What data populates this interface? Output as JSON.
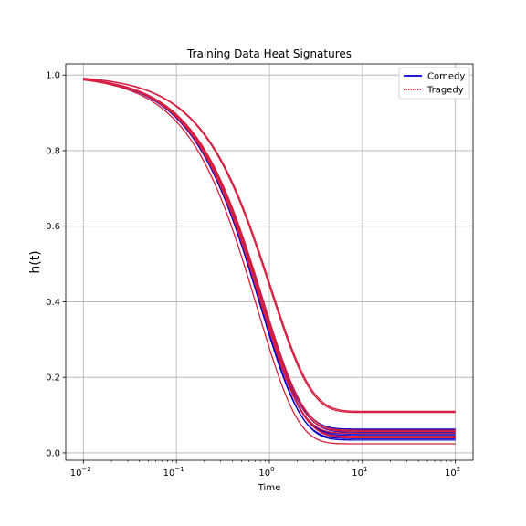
{
  "chart_data": {
    "type": "line",
    "title": "Training Data Heat Signatures",
    "xlabel": "Time",
    "ylabel": "h(t)",
    "xscale": "log",
    "xlim": [
      0.00646,
      154.8
    ],
    "ylim": [
      -0.0195,
      1.0295
    ],
    "x_ticks": [
      {
        "value": 0.01,
        "base": "10",
        "exp": "−2"
      },
      {
        "value": 0.1,
        "base": "10",
        "exp": "−1"
      },
      {
        "value": 1,
        "base": "10",
        "exp": "0"
      },
      {
        "value": 10,
        "base": "10",
        "exp": "1"
      },
      {
        "value": 100,
        "base": "10",
        "exp": "2"
      }
    ],
    "y_ticks": [
      {
        "value": 0.0,
        "label": "0.0"
      },
      {
        "value": 0.2,
        "label": "0.2"
      },
      {
        "value": 0.4,
        "label": "0.4"
      },
      {
        "value": 0.6,
        "label": "0.6"
      },
      {
        "value": 0.8,
        "label": "0.8"
      },
      {
        "value": 1.0,
        "label": "1.0"
      }
    ],
    "grid": true,
    "legend": {
      "placement": "top-right",
      "entries": [
        {
          "label": "Comedy",
          "color": "#0000cc"
        },
        {
          "label": "Tragedy",
          "color": "#d62040"
        }
      ]
    },
    "x_range": [
      0.01,
      100
    ],
    "series": [
      {
        "group": "Comedy",
        "color": "#0000cc",
        "k": 1.2,
        "plateau": 0.063
      },
      {
        "group": "Comedy",
        "color": "#0000cc",
        "k": 1.22,
        "plateau": 0.058
      },
      {
        "group": "Comedy",
        "color": "#0000cc",
        "k": 1.18,
        "plateau": 0.055
      },
      {
        "group": "Comedy",
        "color": "#0000cc",
        "k": 1.24,
        "plateau": 0.05
      },
      {
        "group": "Comedy",
        "color": "#0000cc",
        "k": 1.21,
        "plateau": 0.046
      },
      {
        "group": "Comedy",
        "color": "#0000cc",
        "k": 1.19,
        "plateau": 0.042
      },
      {
        "group": "Comedy",
        "color": "#0000cc",
        "k": 1.26,
        "plateau": 0.038
      },
      {
        "group": "Comedy",
        "color": "#0000cc",
        "k": 1.23,
        "plateau": 0.034
      },
      {
        "group": "Tragedy",
        "color": "#d62040",
        "k": 0.96,
        "plateau": 0.11
      },
      {
        "group": "Tragedy",
        "color": "#d62040",
        "k": 0.98,
        "plateau": 0.107
      },
      {
        "group": "Tragedy",
        "color": "#d62040",
        "k": 1.17,
        "plateau": 0.06
      },
      {
        "group": "Tragedy",
        "color": "#d62040",
        "k": 1.2,
        "plateau": 0.057
      },
      {
        "group": "Tragedy",
        "color": "#d62040",
        "k": 1.25,
        "plateau": 0.052
      },
      {
        "group": "Tragedy",
        "color": "#d62040",
        "k": 1.22,
        "plateau": 0.044
      },
      {
        "group": "Tragedy",
        "color": "#d62040",
        "k": 1.18,
        "plateau": 0.04
      },
      {
        "group": "Tragedy",
        "color": "#d62040",
        "k": 1.35,
        "plateau": 0.024
      }
    ]
  }
}
